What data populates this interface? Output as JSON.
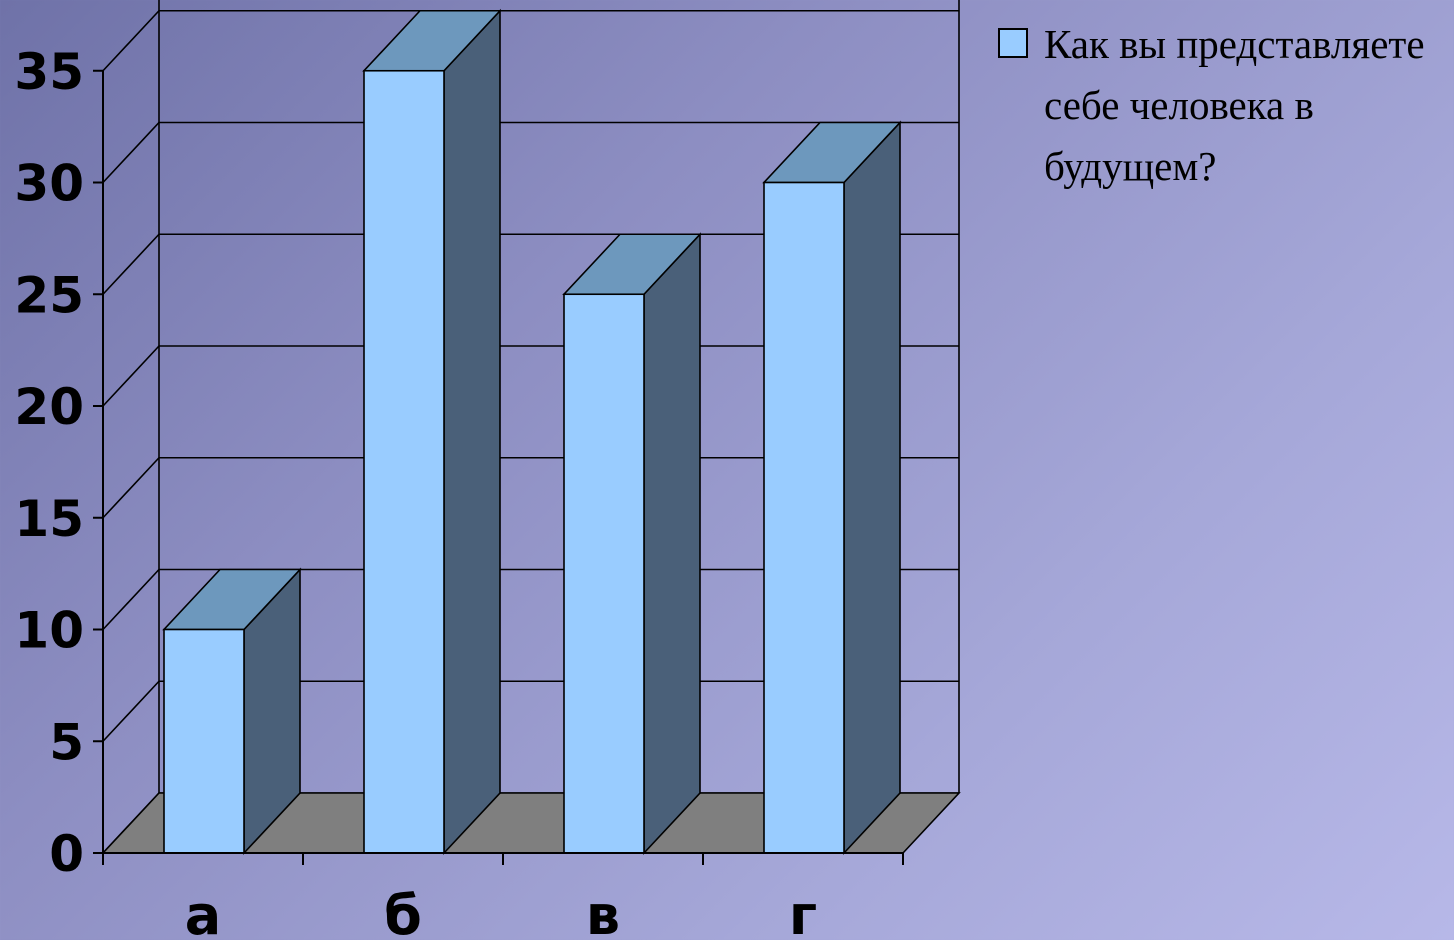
{
  "chart_data": {
    "type": "bar",
    "categories": [
      "а",
      "б",
      "в",
      "г"
    ],
    "series": [
      {
        "name": "Как вы представляете себе человека в будущем?",
        "values": [
          10,
          35,
          25,
          30
        ]
      }
    ],
    "yticks": [
      "0",
      "5",
      "10",
      "15",
      "20",
      "25",
      "30",
      "35"
    ],
    "ylim": [
      0,
      35
    ],
    "grid": true,
    "legend_position": "top-right",
    "colors": {
      "bar_front": "#99ccff",
      "bar_top": "#6d98bd",
      "bar_side": "#4a6079",
      "floor": "#7f7f7f",
      "grid": "#000000"
    }
  },
  "legend": {
    "label": "Как вы представляете себе человека в будущем?"
  }
}
